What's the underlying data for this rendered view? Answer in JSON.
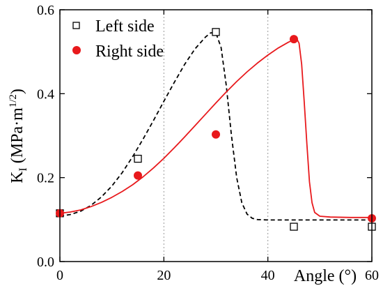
{
  "chart_data": {
    "type": "scatter",
    "title": "",
    "xlabel": "Angle (°)",
    "ylabel": {
      "main": "K",
      "subscript": "I",
      "units_prefix": " (MPa·m",
      "units_superscript": "1/2",
      "units_suffix": ")"
    },
    "xlim": [
      0,
      60
    ],
    "ylim": [
      0,
      0.6
    ],
    "x_ticks": [
      "0",
      "20",
      "40",
      "60"
    ],
    "y_ticks": [
      "0.0",
      "0.2",
      "0.4",
      "0.6"
    ],
    "grid": "vertical dotted at x = 20, 40",
    "legend_position": "top-left",
    "series": [
      {
        "name": "Left side",
        "marker": "open-square",
        "color": "#000000",
        "points": [
          [
            0,
            0.115
          ],
          [
            15,
            0.245
          ],
          [
            30,
            0.547
          ],
          [
            45,
            0.083
          ],
          [
            60,
            0.083
          ]
        ],
        "fit_style": "dashed",
        "fit_curve": [
          [
            0,
            0.108
          ],
          [
            2,
            0.112
          ],
          [
            4,
            0.12
          ],
          [
            6,
            0.134
          ],
          [
            8,
            0.154
          ],
          [
            10,
            0.18
          ],
          [
            12,
            0.212
          ],
          [
            14,
            0.25
          ],
          [
            16,
            0.292
          ],
          [
            18,
            0.336
          ],
          [
            20,
            0.382
          ],
          [
            22,
            0.427
          ],
          [
            24,
            0.47
          ],
          [
            26,
            0.507
          ],
          [
            28,
            0.535
          ],
          [
            29,
            0.545
          ],
          [
            30,
            0.545
          ],
          [
            31,
            0.51
          ],
          [
            32,
            0.42
          ],
          [
            33,
            0.3
          ],
          [
            34,
            0.2
          ],
          [
            35,
            0.14
          ],
          [
            36,
            0.113
          ],
          [
            37,
            0.103
          ],
          [
            38,
            0.1
          ],
          [
            40,
            0.099
          ],
          [
            45,
            0.099
          ],
          [
            50,
            0.099
          ],
          [
            55,
            0.099
          ],
          [
            60,
            0.099
          ]
        ]
      },
      {
        "name": "Right side",
        "marker": "filled-circle",
        "color": "#e8191c",
        "points": [
          [
            0,
            0.115
          ],
          [
            15,
            0.205
          ],
          [
            30,
            0.303
          ],
          [
            45,
            0.53
          ],
          [
            60,
            0.103
          ]
        ],
        "fit_style": "solid",
        "fit_curve": [
          [
            0,
            0.115
          ],
          [
            2,
            0.118
          ],
          [
            4,
            0.123
          ],
          [
            6,
            0.131
          ],
          [
            8,
            0.141
          ],
          [
            10,
            0.153
          ],
          [
            12,
            0.167
          ],
          [
            14,
            0.183
          ],
          [
            16,
            0.202
          ],
          [
            18,
            0.223
          ],
          [
            20,
            0.246
          ],
          [
            22,
            0.271
          ],
          [
            24,
            0.297
          ],
          [
            26,
            0.324
          ],
          [
            28,
            0.351
          ],
          [
            30,
            0.378
          ],
          [
            32,
            0.404
          ],
          [
            34,
            0.429
          ],
          [
            36,
            0.452
          ],
          [
            38,
            0.473
          ],
          [
            40,
            0.492
          ],
          [
            42,
            0.509
          ],
          [
            44,
            0.523
          ],
          [
            45,
            0.528
          ],
          [
            45.6,
            0.53
          ],
          [
            46,
            0.52
          ],
          [
            46.5,
            0.47
          ],
          [
            47,
            0.38
          ],
          [
            47.5,
            0.28
          ],
          [
            48,
            0.19
          ],
          [
            48.5,
            0.14
          ],
          [
            49,
            0.117
          ],
          [
            50,
            0.108
          ],
          [
            52,
            0.106
          ],
          [
            56,
            0.105
          ],
          [
            60,
            0.105
          ]
        ]
      }
    ]
  }
}
